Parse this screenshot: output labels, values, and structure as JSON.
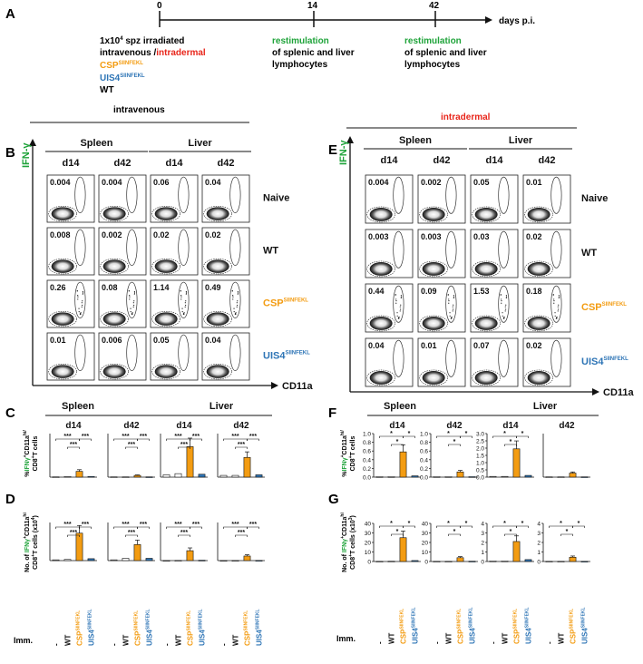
{
  "panels": {
    "A": "A",
    "B": "B",
    "C": "C",
    "D": "D",
    "E": "E",
    "F": "F",
    "G": "G"
  },
  "timeline": {
    "days": [
      "0",
      "14",
      "42"
    ],
    "unit": "days p.i.",
    "dose": "1x10",
    "dose_sup": "4",
    "dose_suffix": " spz irradiated",
    "route_iv": "intravenous /",
    "route_id": "intradermal",
    "restim_label": "restimulation",
    "restim_line2": "of splenic and liver",
    "restim_line3": "lymphocytes",
    "groups": [
      {
        "base": "CSP",
        "sup": "SIINFEKL",
        "color": "#f39c12"
      },
      {
        "base": "UIS4",
        "sup": "SIINFEKL",
        "color": "#2e75b6"
      },
      {
        "base": "WT",
        "sup": "",
        "color": "#111111"
      }
    ]
  },
  "colors": {
    "green": "#1fa33a",
    "red": "#e8261b",
    "orange": "#f39c12",
    "blue": "#2e75b6"
  },
  "routes": {
    "left": "intravenous",
    "right": "intradermal"
  },
  "facs": {
    "organs": [
      "Spleen",
      "Liver"
    ],
    "days": [
      "d14",
      "d42"
    ],
    "yaxis": "IFN-γ",
    "xaxis": "CD11a",
    "rows": [
      {
        "base": "Naive",
        "sup": ""
      },
      {
        "base": "WT",
        "sup": ""
      },
      {
        "base": "CSP",
        "sup": "SIINFEKL"
      },
      {
        "base": "UIS4",
        "sup": "SIINFEKL"
      }
    ],
    "B_values": [
      [
        "0.004",
        "0.004",
        "0.06",
        "0.04"
      ],
      [
        "0.008",
        "0.002",
        "0.02",
        "0.02"
      ],
      [
        "0.26",
        "0.08",
        "1.14",
        "0.49"
      ],
      [
        "0.01",
        "0.006",
        "0.05",
        "0.04"
      ]
    ],
    "E_values": [
      [
        "0.004",
        "0.002",
        "0.05",
        "0.01"
      ],
      [
        "0.003",
        "0.003",
        "0.03",
        "0.02"
      ],
      [
        "0.44",
        "0.09",
        "1.53",
        "0.18"
      ],
      [
        "0.04",
        "0.01",
        "0.07",
        "0.02"
      ]
    ]
  },
  "bar_ylabels": {
    "pct_line1": "%IFNγ",
    "pct_line1_rest": "CD11a",
    "pct_line2": "CD8",
    "pct_line2_rest": "T cells",
    "no_line1": "No. of ",
    "no_line1_rest": "CD11a",
    "no_line2": "CD8",
    "no_line2_rest": "T cells (x10",
    "hi": "hi",
    "plus": "+",
    "exp4": "4",
    "exp3": "3",
    "close": ")"
  },
  "imm_label": "Imm.",
  "x_categories": [
    {
      "base": "-",
      "sup": ""
    },
    {
      "base": "WT",
      "sup": ""
    },
    {
      "base": "CSP",
      "sup": "SIINFEKL"
    },
    {
      "base": "UIS4",
      "sup": "SIINFEKL"
    }
  ],
  "sig": {
    "three": "***",
    "one": "*"
  },
  "chart_data": [
    {
      "type": "bar",
      "panel": "C",
      "organ": "Spleen",
      "day": "d14",
      "ylabel": "%IFNγ+ CD11a hi / CD8+ T cells",
      "categories": [
        "-",
        "WT",
        "CSP SIINFEKL",
        "UIS4 SIINFEKL"
      ],
      "values": [
        0.01,
        0.02,
        0.2,
        0.02
      ],
      "ylim": [
        0,
        1.5
      ],
      "ticks": []
    },
    {
      "type": "bar",
      "panel": "C",
      "organ": "Spleen",
      "day": "d42",
      "categories": [
        "-",
        "WT",
        "CSP SIINFEKL",
        "UIS4 SIINFEKL"
      ],
      "values": [
        0.01,
        0.01,
        0.06,
        0.01
      ],
      "ylim": [
        0,
        1.5
      ],
      "ticks": []
    },
    {
      "type": "bar",
      "panel": "C",
      "organ": "Liver",
      "day": "d14",
      "categories": [
        "-",
        "WT",
        "CSP SIINFEKL",
        "UIS4 SIINFEKL"
      ],
      "values": [
        0.08,
        0.12,
        1.05,
        0.1
      ],
      "ylim": [
        0,
        1.5
      ],
      "ticks": []
    },
    {
      "type": "bar",
      "panel": "C",
      "organ": "Liver",
      "day": "d42",
      "categories": [
        "-",
        "WT",
        "CSP SIINFEKL",
        "UIS4 SIINFEKL"
      ],
      "values": [
        0.06,
        0.06,
        0.68,
        0.08
      ],
      "ylim": [
        0,
        1.5
      ],
      "ticks": []
    },
    {
      "type": "bar",
      "panel": "D",
      "organ": "Spleen",
      "day": "d14",
      "ylabel": "No. of IFNγ+ CD11a hi CD8+ T cells (x10^4)",
      "categories": [
        "-",
        "WT",
        "CSP SIINFEKL",
        "UIS4 SIINFEKL"
      ],
      "values": [
        0.2,
        0.3,
        7.2,
        0.5
      ],
      "ylim": [
        0,
        10
      ],
      "ticks": []
    },
    {
      "type": "bar",
      "panel": "D",
      "organ": "Spleen",
      "day": "d42",
      "categories": [
        "-",
        "WT",
        "CSP SIINFEKL",
        "UIS4 SIINFEKL"
      ],
      "values": [
        0.2,
        0.6,
        4.2,
        0.6
      ],
      "ylim": [
        0,
        10
      ],
      "ticks": []
    },
    {
      "type": "bar",
      "panel": "D",
      "organ": "Liver",
      "day": "d14",
      "categories": [
        "-",
        "WT",
        "CSP SIINFEKL",
        "UIS4 SIINFEKL"
      ],
      "values": [
        0.02,
        0.05,
        2.6,
        0.1
      ],
      "ylim": [
        0,
        10
      ],
      "ticks": []
    },
    {
      "type": "bar",
      "panel": "D",
      "organ": "Liver",
      "day": "d42",
      "categories": [
        "-",
        "WT",
        "CSP SIINFEKL",
        "UIS4 SIINFEKL"
      ],
      "values": [
        0.02,
        0.03,
        1.2,
        0.05
      ],
      "ylim": [
        0,
        10
      ],
      "ticks": []
    },
    {
      "type": "bar",
      "panel": "F",
      "organ": "Spleen",
      "day": "d14",
      "ylabel": "%IFNγ+ CD11a hi / CD8+ T cells",
      "categories": [
        "-",
        "WT",
        "CSP SIINFEKL",
        "UIS4 SIINFEKL"
      ],
      "values": [
        0.01,
        0.01,
        0.58,
        0.03
      ],
      "ylim": [
        0,
        1.0
      ],
      "ticks": [
        "0.0",
        "0.2",
        "0.4",
        "0.6",
        "0.8",
        "1.0"
      ]
    },
    {
      "type": "bar",
      "panel": "F",
      "organ": "Spleen",
      "day": "d42",
      "categories": [
        "-",
        "WT",
        "CSP SIINFEKL",
        "UIS4 SIINFEKL"
      ],
      "values": [
        0.01,
        0.01,
        0.12,
        0.01
      ],
      "ylim": [
        0,
        1.0
      ],
      "ticks": [
        "0.0",
        "0.2",
        "0.4",
        "0.6",
        "0.8",
        "1.0"
      ]
    },
    {
      "type": "bar",
      "panel": "F",
      "organ": "Liver",
      "day": "d14",
      "categories": [
        "-",
        "WT",
        "CSP SIINFEKL",
        "UIS4 SIINFEKL"
      ],
      "values": [
        0.05,
        0.05,
        1.95,
        0.12
      ],
      "ylim": [
        0,
        3.0
      ],
      "ticks": [
        "0.0",
        "0.5",
        "1.0",
        "1.5",
        "2.0",
        "2.5",
        "3.0"
      ]
    },
    {
      "type": "bar",
      "panel": "F",
      "organ": "Liver",
      "day": "d42",
      "categories": [
        "-",
        "WT",
        "CSP SIINFEKL",
        "UIS4 SIINFEKL"
      ],
      "values": [
        0.02,
        0.02,
        0.28,
        0.02
      ],
      "ylim": [
        0,
        3.0
      ],
      "ticks": []
    },
    {
      "type": "bar",
      "panel": "G",
      "organ": "Spleen",
      "day": "d14",
      "ylabel": "No. of IFNγ+ CD11a hi CD8+ T cells (x10^3)",
      "categories": [
        "-",
        "WT",
        "CSP SIINFEKL",
        "UIS4 SIINFEKL"
      ],
      "values": [
        0.2,
        0.3,
        25,
        1
      ],
      "ylim": [
        0,
        40
      ],
      "ticks": [
        "0",
        "10",
        "20",
        "30",
        "40"
      ]
    },
    {
      "type": "bar",
      "panel": "G",
      "organ": "Spleen",
      "day": "d42",
      "categories": [
        "-",
        "WT",
        "CSP SIINFEKL",
        "UIS4 SIINFEKL"
      ],
      "values": [
        0.2,
        0.2,
        4,
        0.3
      ],
      "ylim": [
        0,
        40
      ],
      "ticks": [
        "0",
        "10",
        "20",
        "30",
        "40"
      ]
    },
    {
      "type": "bar",
      "panel": "G",
      "organ": "Liver",
      "day": "d14",
      "categories": [
        "-",
        "WT",
        "CSP SIINFEKL",
        "UIS4 SIINFEKL"
      ],
      "values": [
        0.05,
        0.05,
        2.1,
        0.2
      ],
      "ylim": [
        0,
        4
      ],
      "ticks": [
        "0",
        "1",
        "2",
        "3",
        "4"
      ]
    },
    {
      "type": "bar",
      "panel": "G",
      "organ": "Liver",
      "day": "d42",
      "categories": [
        "-",
        "WT",
        "CSP SIINFEKL",
        "UIS4 SIINFEKL"
      ],
      "values": [
        0.02,
        0.02,
        0.45,
        0.02
      ],
      "ylim": [
        0,
        4
      ],
      "ticks": [
        "0",
        "1",
        "2",
        "3",
        "4"
      ]
    }
  ]
}
